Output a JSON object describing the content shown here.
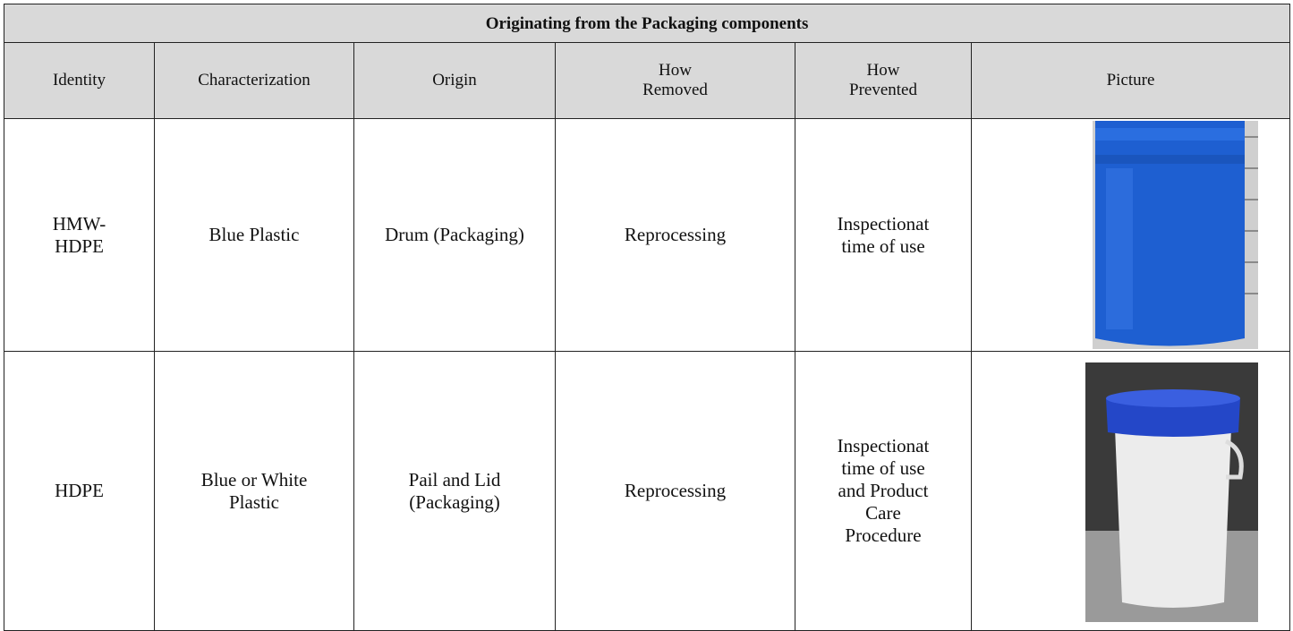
{
  "table": {
    "title": "Originating from the Packaging components",
    "header": [
      "Identity",
      "Characterization",
      "Origin",
      "How Removed",
      "How Prevented",
      "Picture"
    ],
    "rows": [
      [
        "HMW-HDPE",
        "Blue Plastic",
        "Drum (Packaging)",
        "Reprocessing",
        "Inspectionat time of use"
      ],
      [
        "HDPE",
        "Blue or White Plastic",
        "Pail and Lid (Packaging)",
        "Reprocessing",
        "Inspectionat time of use and Product Care Procedure"
      ]
    ]
  }
}
